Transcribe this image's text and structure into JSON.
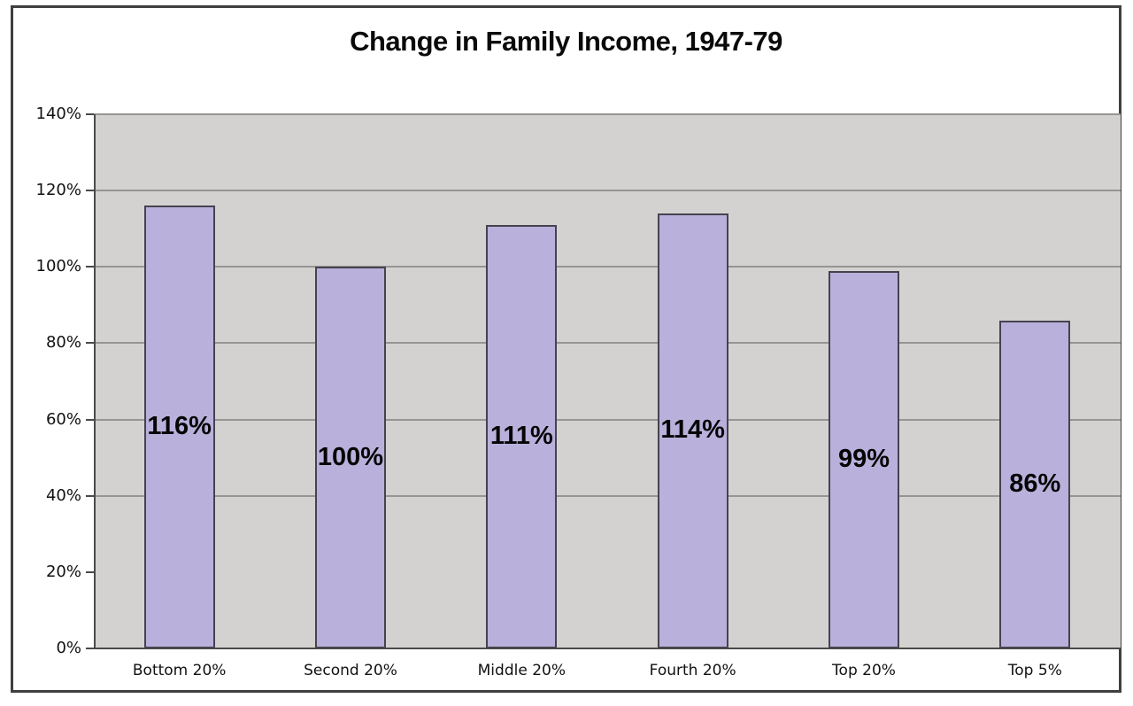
{
  "chart_data": {
    "type": "bar",
    "title": "Change in Family Income, 1947-79",
    "categories": [
      "Bottom 20%",
      "Second 20%",
      "Middle 20%",
      "Fourth 20%",
      "Top 20%",
      "Top 5%"
    ],
    "values": [
      116,
      100,
      111,
      114,
      99,
      86
    ],
    "value_labels": [
      "116%",
      "100%",
      "111%",
      "114%",
      "99%",
      "86%"
    ],
    "xlabel": "",
    "ylabel": "",
    "ylim": [
      0,
      140
    ],
    "y_tick_labels": [
      "140%",
      "120%",
      "100%",
      "80%",
      "60%",
      "40%",
      "20%",
      "0%"
    ],
    "y_tick_values": [
      140,
      120,
      100,
      80,
      60,
      40,
      20,
      0
    ],
    "gridline_values": [
      140,
      120,
      100,
      80,
      60,
      40
    ],
    "grid": "horizontal",
    "legend_position": "none",
    "colors": {
      "bar_fill": "#b9b1db",
      "bar_border": "#46424f",
      "plot_background": "#d4d2d1",
      "gridline": "#969594",
      "axis": "#4a4a4a",
      "frame_border": "#3f3f3f",
      "page_background": "#ffffff",
      "text": "#0a0a0a"
    }
  }
}
